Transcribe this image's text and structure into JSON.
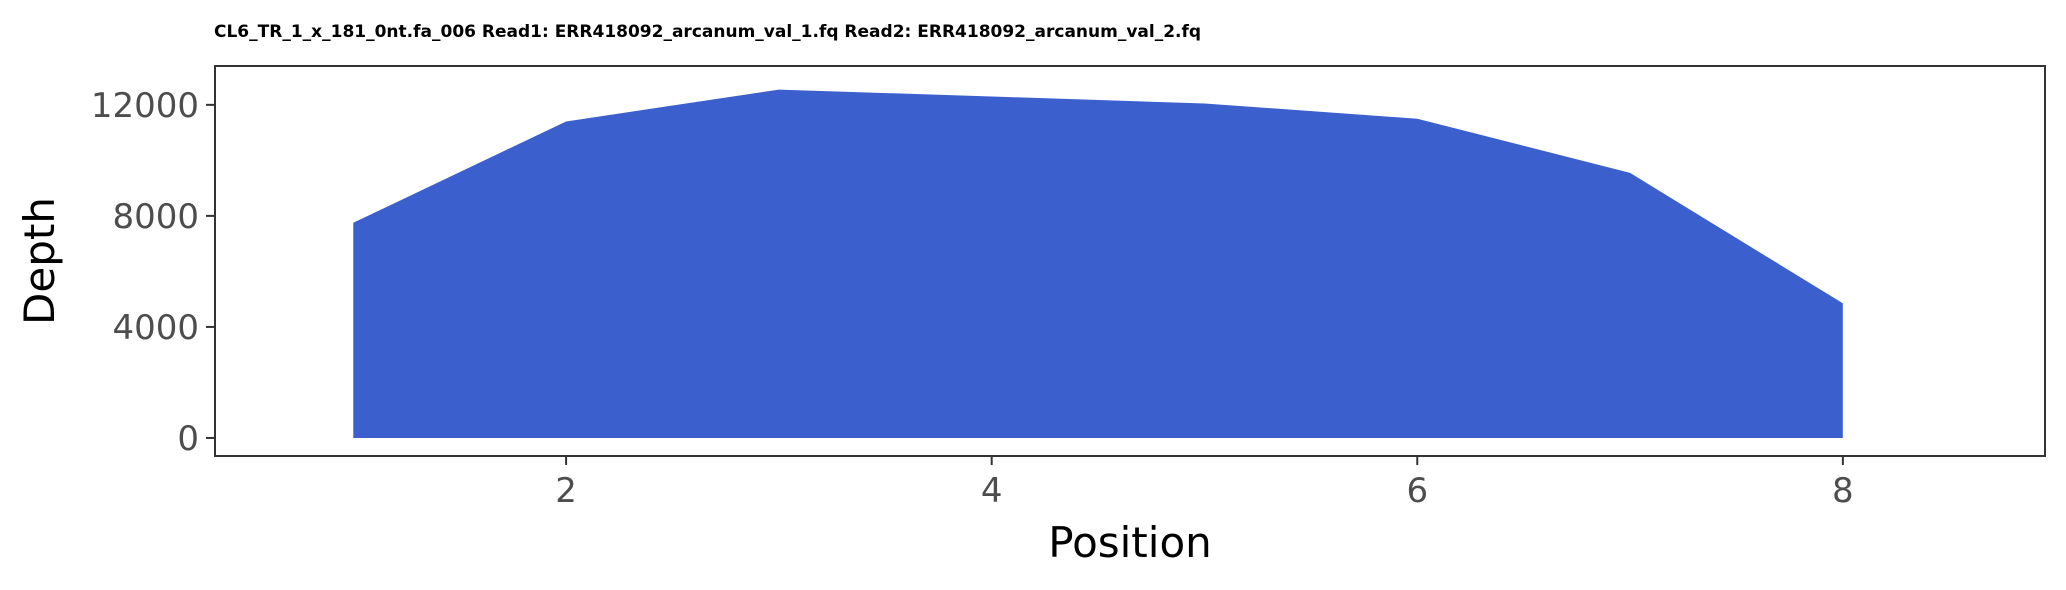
{
  "chart_data": {
    "type": "area",
    "title": "CL6_TR_1_x_181_0nt.fa_006 Read1: ERR418092_arcanum_val_1.fq Read2: ERR418092_arcanum_val_2.fq",
    "xlabel": "Position",
    "ylabel": "Depth",
    "x": [
      1,
      2,
      3,
      4,
      5,
      6,
      7,
      8
    ],
    "series": [
      {
        "values": [
          7750,
          11400,
          12550,
          12300,
          12050,
          11500,
          9550,
          4850
        ]
      }
    ],
    "xlim": [
      0.35,
      8.95
    ],
    "ylim": [
      -650,
      13400
    ],
    "x_ticks": [
      2,
      4,
      6,
      8
    ],
    "y_ticks": [
      0,
      4000,
      8000,
      12000
    ],
    "grid": false,
    "legend": "none",
    "fill_color": "#3b5fcd",
    "axis_color": "#333333",
    "tick_label_color": "#4d4d4d"
  }
}
